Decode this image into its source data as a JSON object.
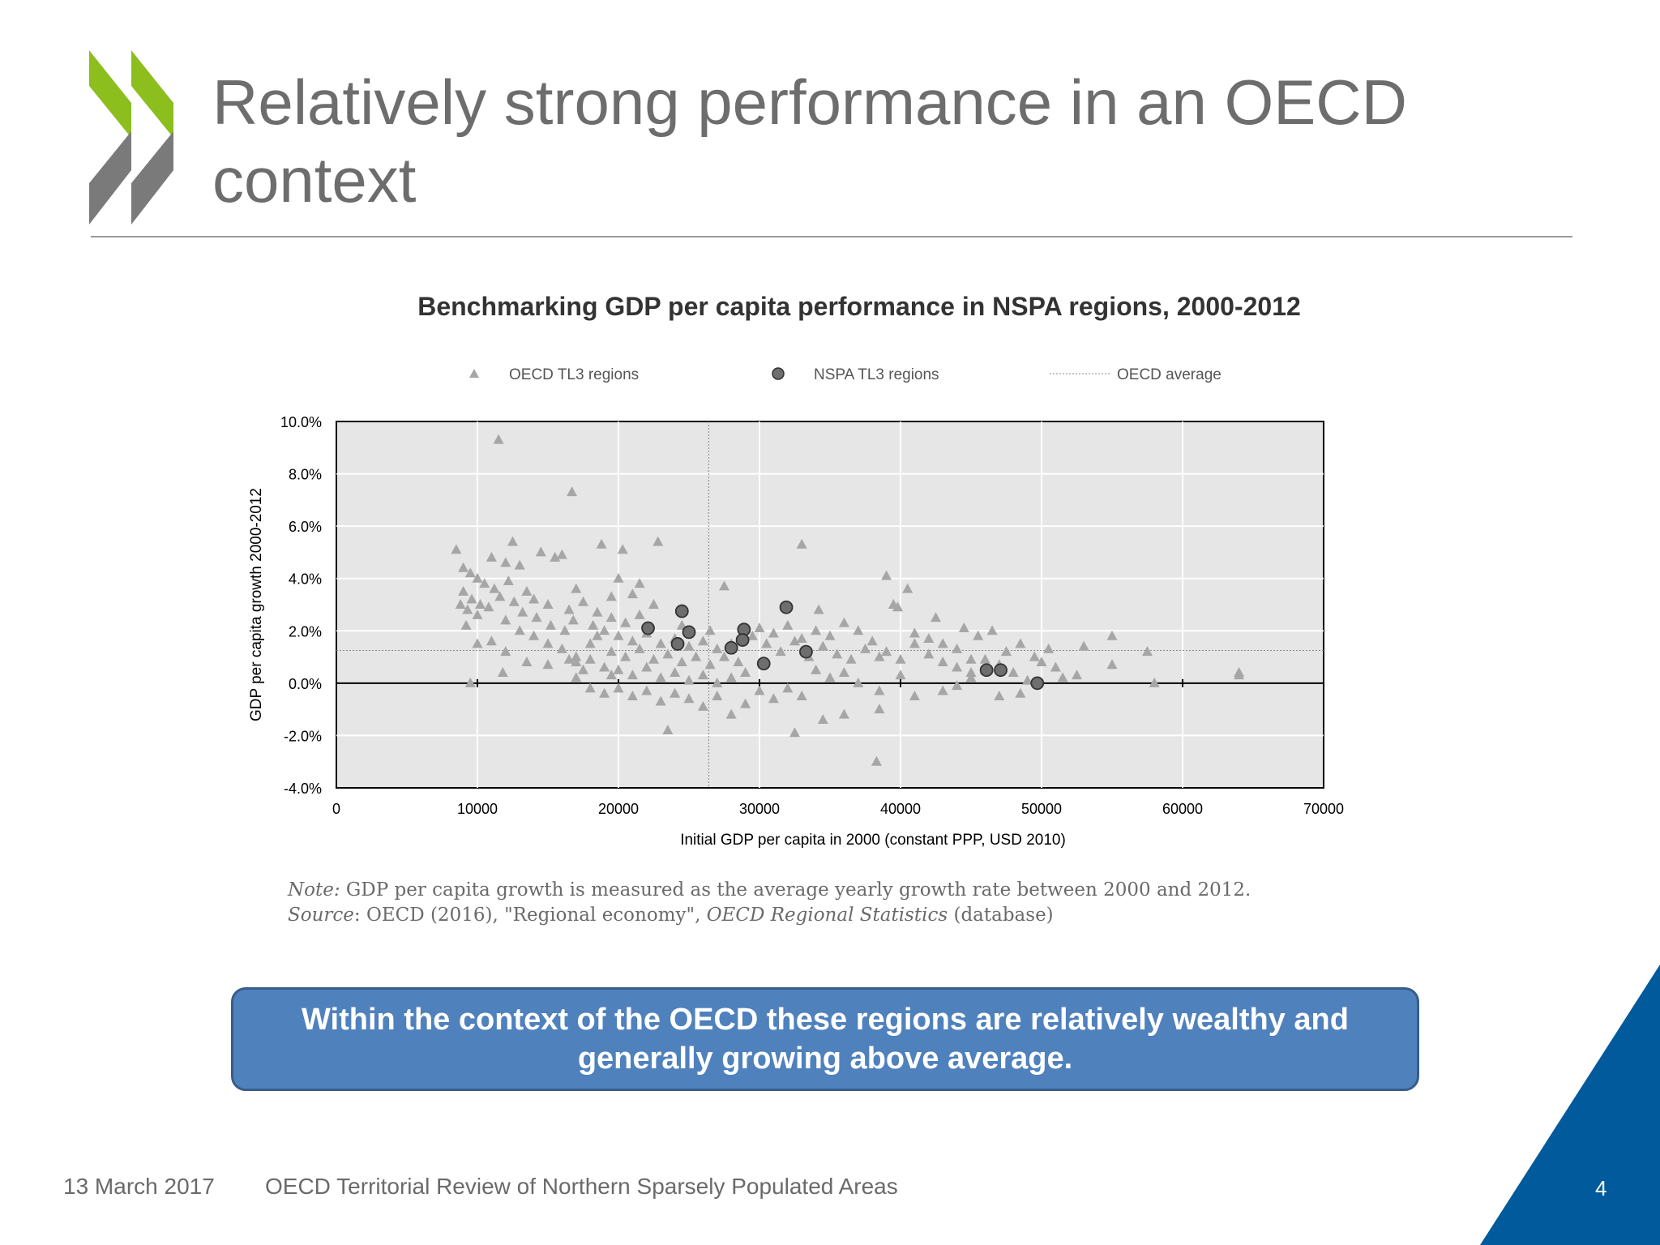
{
  "slide": {
    "title": "Relatively strong performance in an OECD context",
    "date": "13 March 2017",
    "review_title": "OECD Territorial Review of Northern Sparsely Populated Areas",
    "page_number": "4",
    "callout": "Within the context of the OECD these regions are relatively wealthy and generally growing above average.",
    "note_label": "Note:",
    "note_text": " GDP per capita growth is measured as the average yearly growth rate between 2000 and 2012.",
    "source_label": "Source",
    "source_text_1": ": OECD (2016), \"Regional economy\", ",
    "source_italic": "OECD Regional Statistics",
    "source_text_2": " (database)",
    "colors": {
      "accent_green": "#8cbe1e",
      "logo_grey": "#7a7a7a",
      "callout_blue": "#4f81bd",
      "corner_blue": "#005a9c"
    }
  },
  "chart_data": {
    "type": "scatter",
    "title": "Benchmarking GDP per capita performance in NSPA regions, 2000-2012",
    "xlabel": "Initial GDP per capita in 2000 (constant PPP, USD 2010)",
    "ylabel": "GDP per capita growth 2000-2012",
    "xlim": [
      0,
      70000
    ],
    "ylim": [
      -4.0,
      10.0
    ],
    "x_ticks": [
      "0",
      "10000",
      "20000",
      "30000",
      "40000",
      "50000",
      "60000",
      "70000"
    ],
    "y_ticks": [
      "10.0%",
      "8.0%",
      "6.0%",
      "4.0%",
      "2.0%",
      "0.0%",
      "-2.0%",
      "-4.0%"
    ],
    "grid": true,
    "legend_position": "top",
    "legend": [
      "OECD TL3 regions",
      "NSPA TL3 regions",
      "OECD average"
    ],
    "oecd_average": {
      "x": 26400,
      "y": 1.25
    },
    "series": [
      {
        "name": "OECD TL3 regions",
        "marker": "triangle",
        "color": "#a6a6a6",
        "points": [
          [
            11500,
            9.3
          ],
          [
            16700,
            7.3
          ],
          [
            33000,
            5.3
          ],
          [
            22800,
            5.4
          ],
          [
            12500,
            5.4
          ],
          [
            18800,
            5.3
          ],
          [
            20300,
            5.1
          ],
          [
            14500,
            5.0
          ],
          [
            15500,
            4.8
          ],
          [
            16000,
            4.9
          ],
          [
            8500,
            5.1
          ],
          [
            11000,
            4.8
          ],
          [
            12000,
            4.6
          ],
          [
            13000,
            4.5
          ],
          [
            39000,
            4.1
          ],
          [
            40500,
            3.6
          ],
          [
            27500,
            3.7
          ],
          [
            9000,
            4.4
          ],
          [
            9500,
            4.2
          ],
          [
            10000,
            4.0
          ],
          [
            10500,
            3.8
          ],
          [
            11200,
            3.6
          ],
          [
            12200,
            3.9
          ],
          [
            13500,
            3.5
          ],
          [
            14000,
            3.2
          ],
          [
            15000,
            3.0
          ],
          [
            16500,
            2.8
          ],
          [
            17500,
            3.1
          ],
          [
            18500,
            2.7
          ],
          [
            19500,
            2.5
          ],
          [
            9000,
            3.5
          ],
          [
            9600,
            3.2
          ],
          [
            10200,
            3.0
          ],
          [
            10800,
            2.9
          ],
          [
            11600,
            3.3
          ],
          [
            12600,
            3.1
          ],
          [
            13200,
            2.7
          ],
          [
            14200,
            2.5
          ],
          [
            15200,
            2.2
          ],
          [
            16200,
            2.0
          ],
          [
            8800,
            3.0
          ],
          [
            9300,
            2.8
          ],
          [
            10000,
            2.6
          ],
          [
            12000,
            2.4
          ],
          [
            13000,
            2.0
          ],
          [
            14000,
            1.8
          ],
          [
            15000,
            1.5
          ],
          [
            16000,
            1.3
          ],
          [
            17000,
            1.0
          ],
          [
            18000,
            0.9
          ],
          [
            9200,
            2.2
          ],
          [
            10000,
            1.5
          ],
          [
            11000,
            1.6
          ],
          [
            12000,
            1.2
          ],
          [
            13500,
            0.8
          ],
          [
            15000,
            0.7
          ],
          [
            16500,
            0.9
          ],
          [
            11800,
            0.4
          ],
          [
            9500,
            0.0
          ],
          [
            17000,
            0.2
          ],
          [
            19000,
            2.0
          ],
          [
            20000,
            1.8
          ],
          [
            21000,
            1.6
          ],
          [
            22000,
            1.9
          ],
          [
            23000,
            1.5
          ],
          [
            24000,
            1.7
          ],
          [
            25000,
            1.4
          ],
          [
            26000,
            1.6
          ],
          [
            27000,
            1.3
          ],
          [
            28000,
            1.5
          ],
          [
            19500,
            1.2
          ],
          [
            20500,
            1.0
          ],
          [
            21500,
            1.3
          ],
          [
            22500,
            0.9
          ],
          [
            23500,
            1.1
          ],
          [
            24500,
            0.8
          ],
          [
            25500,
            1.0
          ],
          [
            26500,
            0.7
          ],
          [
            27500,
            1.0
          ],
          [
            28500,
            0.8
          ],
          [
            20000,
            0.5
          ],
          [
            21000,
            0.3
          ],
          [
            22000,
            0.6
          ],
          [
            23000,
            0.2
          ],
          [
            24000,
            0.4
          ],
          [
            25000,
            0.1
          ],
          [
            26000,
            0.3
          ],
          [
            27000,
            0.0
          ],
          [
            28000,
            0.2
          ],
          [
            29000,
            0.4
          ],
          [
            20000,
            -0.2
          ],
          [
            21000,
            -0.5
          ],
          [
            22000,
            -0.3
          ],
          [
            23000,
            -0.7
          ],
          [
            24000,
            -0.4
          ],
          [
            25000,
            -0.6
          ],
          [
            26000,
            -0.9
          ],
          [
            27000,
            -0.5
          ],
          [
            28000,
            -1.2
          ],
          [
            29000,
            -0.8
          ],
          [
            23500,
            -1.8
          ],
          [
            32500,
            -1.9
          ],
          [
            34500,
            -1.4
          ],
          [
            36000,
            -1.2
          ],
          [
            38500,
            -1.0
          ],
          [
            38300,
            -3.0
          ],
          [
            30000,
            -0.3
          ],
          [
            31000,
            -0.6
          ],
          [
            32000,
            -0.2
          ],
          [
            33000,
            -0.5
          ],
          [
            29500,
            1.8
          ],
          [
            30500,
            1.5
          ],
          [
            31500,
            1.2
          ],
          [
            32500,
            1.6
          ],
          [
            33500,
            1.0
          ],
          [
            34500,
            1.4
          ],
          [
            35500,
            1.1
          ],
          [
            36500,
            0.9
          ],
          [
            37500,
            1.3
          ],
          [
            38500,
            1.0
          ],
          [
            30000,
            2.1
          ],
          [
            31000,
            1.9
          ],
          [
            32000,
            2.2
          ],
          [
            33000,
            1.7
          ],
          [
            34000,
            2.0
          ],
          [
            34200,
            2.8
          ],
          [
            35000,
            1.8
          ],
          [
            36000,
            2.3
          ],
          [
            37000,
            2.0
          ],
          [
            38000,
            1.6
          ],
          [
            39000,
            1.2
          ],
          [
            40000,
            0.9
          ],
          [
            41000,
            1.5
          ],
          [
            42000,
            1.1
          ],
          [
            43000,
            0.8
          ],
          [
            44000,
            0.6
          ],
          [
            45000,
            0.9
          ],
          [
            46000,
            0.5
          ],
          [
            47000,
            0.7
          ],
          [
            48000,
            0.4
          ],
          [
            39500,
            3.0
          ],
          [
            39800,
            2.9
          ],
          [
            42500,
            2.5
          ],
          [
            44500,
            2.1
          ],
          [
            45500,
            1.8
          ],
          [
            46500,
            2.0
          ],
          [
            41000,
            1.9
          ],
          [
            42000,
            1.7
          ],
          [
            43000,
            1.5
          ],
          [
            44000,
            1.3
          ],
          [
            40000,
            0.3
          ],
          [
            41000,
            -0.5
          ],
          [
            43000,
            -0.3
          ],
          [
            44000,
            -0.1
          ],
          [
            45000,
            0.2
          ],
          [
            38500,
            -0.3
          ],
          [
            37000,
            0.0
          ],
          [
            36000,
            0.4
          ],
          [
            35000,
            0.2
          ],
          [
            34000,
            0.5
          ],
          [
            47500,
            1.2
          ],
          [
            48500,
            1.5
          ],
          [
            49500,
            1.0
          ],
          [
            50500,
            1.3
          ],
          [
            51000,
            0.6
          ],
          [
            52500,
            0.3
          ],
          [
            53000,
            1.4
          ],
          [
            55000,
            1.8
          ],
          [
            55000,
            0.7
          ],
          [
            57500,
            1.2
          ],
          [
            58000,
            0.0
          ],
          [
            64000,
            0.3
          ],
          [
            64000,
            0.4
          ],
          [
            48500,
            -0.4
          ],
          [
            50000,
            0.8
          ],
          [
            51500,
            0.2
          ],
          [
            47000,
            -0.5
          ],
          [
            46000,
            0.9
          ],
          [
            45000,
            0.4
          ],
          [
            49000,
            0.1
          ],
          [
            18000,
            1.5
          ],
          [
            18500,
            1.8
          ],
          [
            19000,
            0.6
          ],
          [
            19500,
            0.3
          ],
          [
            17500,
            0.5
          ],
          [
            17000,
            0.8
          ],
          [
            18000,
            -0.2
          ],
          [
            19000,
            -0.4
          ],
          [
            20500,
            2.3
          ],
          [
            21500,
            2.6
          ],
          [
            20000,
            4.0
          ],
          [
            21500,
            3.8
          ],
          [
            22500,
            3.0
          ],
          [
            21000,
            3.4
          ],
          [
            19500,
            3.3
          ],
          [
            17000,
            3.6
          ],
          [
            16800,
            2.4
          ],
          [
            18200,
            2.2
          ],
          [
            24500,
            2.2
          ],
          [
            26500,
            2.0
          ]
        ]
      },
      {
        "name": "NSPA TL3 regions",
        "marker": "circle",
        "color": "#6e6e6e",
        "points": [
          [
            22100,
            2.1
          ],
          [
            24500,
            2.75
          ],
          [
            25000,
            1.95
          ],
          [
            24200,
            1.5
          ],
          [
            28000,
            1.35
          ],
          [
            28900,
            2.05
          ],
          [
            28800,
            1.65
          ],
          [
            30300,
            0.75
          ],
          [
            31900,
            2.9
          ],
          [
            33300,
            1.2
          ],
          [
            46100,
            0.5
          ],
          [
            47100,
            0.5
          ],
          [
            49700,
            0.0
          ]
        ]
      }
    ]
  }
}
